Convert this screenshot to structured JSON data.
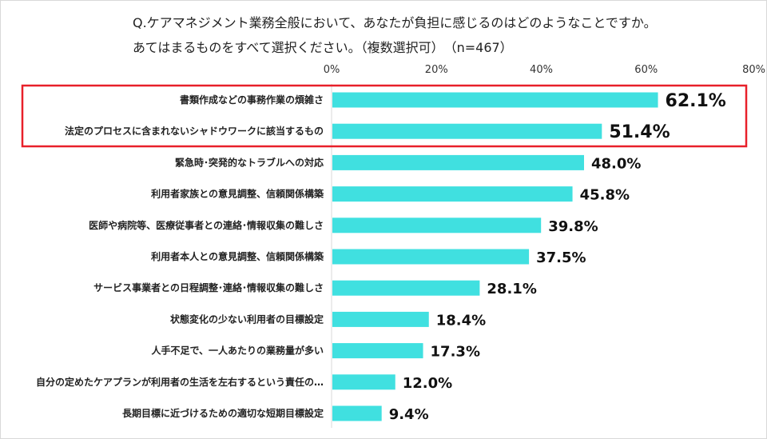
{
  "chart_data": {
    "type": "bar",
    "orientation": "horizontal",
    "title": [
      "Q.ケアマネジメント業務全般において、あなたが負担に感じるのはどのようなことですか。",
      "あてはまるものをすべて選択ください。（複数選択可）　（n=467）"
    ],
    "xlim": [
      0,
      80
    ],
    "ticks": [
      "0%",
      "20%",
      "40%",
      "60%",
      "80%"
    ],
    "tick_values": [
      0,
      20,
      40,
      60,
      80
    ],
    "axis_position": "top",
    "grid": false,
    "categories": [
      "書類作成などの事務作業の煩雑さ",
      "法定のプロセスに含まれないシャドウワークに該当するもの",
      "緊急時･突発的なトラブルへの対応",
      "利用者家族との意見調整、信頼関係構築",
      "医師や病院等、医療従事者との連絡･情報収集の難しさ",
      "利用者本人との意見調整、信頼関係構築",
      "サービス事業者との日程調整･連絡･情報収集の難しさ",
      "状態変化の少ない利用者の目標設定",
      "人手不足で、一人あたりの業務量が多い",
      "自分の定めたケアプランが利用者の生活を左右するという責任の…",
      "長期目標に近づけるための適切な短期目標設定"
    ],
    "values": [
      62.1,
      51.4,
      48.0,
      45.8,
      39.8,
      37.5,
      28.1,
      18.4,
      17.3,
      12.0,
      9.4
    ],
    "value_labels": [
      "62.1%",
      "51.4%",
      "48.0%",
      "45.8%",
      "39.8%",
      "37.5%",
      "28.1%",
      "18.4%",
      "17.3%",
      "12.0%",
      "9.4%"
    ],
    "highlighted": [
      0,
      1
    ],
    "colors": {
      "bar": "#40E0E0",
      "highlight_box": "#E8202A",
      "axis": "#d9d9d9"
    }
  }
}
